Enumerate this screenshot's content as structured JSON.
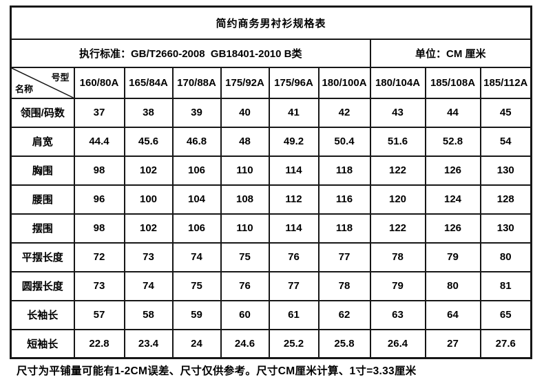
{
  "sheet": {
    "title": "简约商务男衬衫规格表",
    "standard": "执行标准：GB/T2660-2008  GB18401-2010 B类",
    "unit": "单位：CM 厘米",
    "footer_note": "尺寸为平铺量可能有1-2CM误差、尺寸仅供参考。尺寸CM厘米计算、1寸=3.33厘米"
  },
  "table": {
    "corner": {
      "top_right": "号型",
      "bottom_left": "名称"
    },
    "size_columns": [
      "160/80A",
      "165/84A",
      "170/88A",
      "175/92A",
      "175/96A",
      "180/100A",
      "180/104A",
      "185/108A",
      "185/112A"
    ],
    "rows": [
      {
        "label": "领围/码数",
        "values": [
          37,
          38,
          39,
          40,
          41,
          42,
          43,
          44,
          45
        ]
      },
      {
        "label": "肩宽",
        "values": [
          44.4,
          45.6,
          46.8,
          48,
          49.2,
          50.4,
          51.6,
          52.8,
          54
        ]
      },
      {
        "label": "胸围",
        "values": [
          98,
          102,
          106,
          110,
          114,
          118,
          122,
          126,
          130
        ]
      },
      {
        "label": "腰围",
        "values": [
          96,
          100,
          104,
          108,
          112,
          116,
          120,
          124,
          128
        ]
      },
      {
        "label": "摆围",
        "values": [
          98,
          102,
          106,
          110,
          114,
          118,
          122,
          126,
          130
        ]
      },
      {
        "label": "平摆长度",
        "values": [
          72,
          73,
          74,
          75,
          76,
          77,
          78,
          79,
          80
        ]
      },
      {
        "label": "圆摆长度",
        "values": [
          73,
          74,
          75,
          76,
          77,
          78,
          79,
          80,
          81
        ]
      },
      {
        "label": "长袖长",
        "values": [
          57,
          58,
          59,
          60,
          61,
          62,
          63,
          64,
          65
        ]
      },
      {
        "label": "短袖长",
        "values": [
          22.8,
          23.4,
          24,
          24.6,
          25.2,
          25.8,
          26.4,
          27,
          27.6
        ]
      }
    ]
  },
  "colors": {
    "background": "#ffffff",
    "border": "#161616",
    "text": "#000000"
  }
}
